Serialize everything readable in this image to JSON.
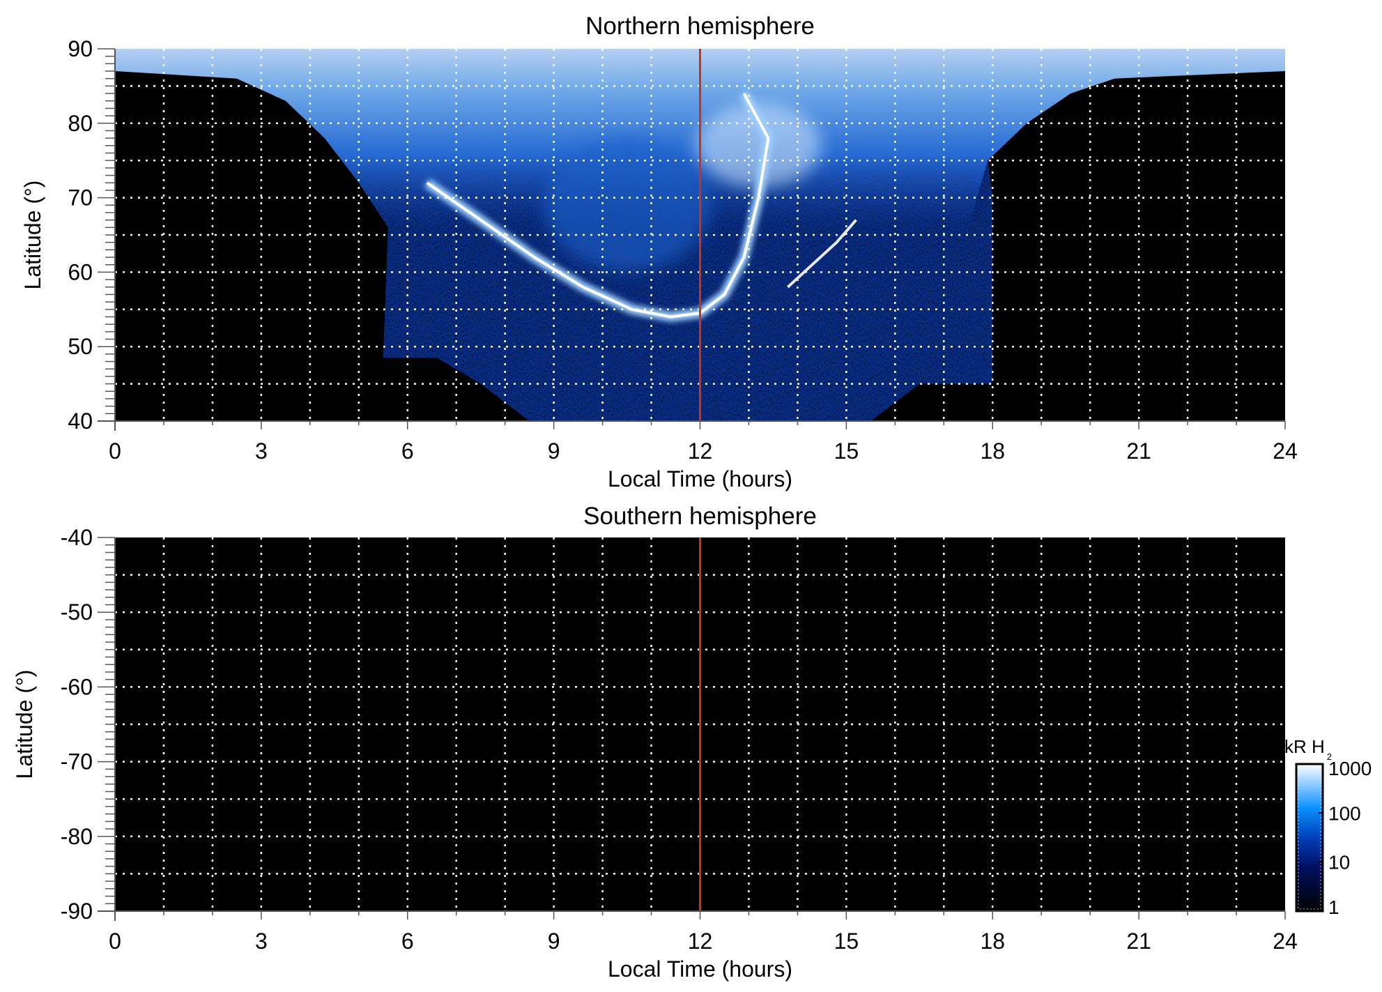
{
  "chart_data": [
    {
      "type": "heatmap",
      "title": "Northern hemisphere",
      "xlabel": "Local Time (hours)",
      "ylabel": "Latitude (°)",
      "xlim": [
        0,
        24
      ],
      "ylim": [
        40,
        90
      ],
      "xticks": [
        "0",
        "3",
        "6",
        "9",
        "12",
        "15",
        "18",
        "21",
        "24"
      ],
      "yticks": [
        "40",
        "50",
        "60",
        "70",
        "80",
        "90"
      ],
      "xtick_values": [
        0,
        3,
        6,
        9,
        12,
        15,
        18,
        21,
        24
      ],
      "ytick_values": [
        40,
        50,
        60,
        70,
        80,
        90
      ],
      "grid": true,
      "grid_x_step": 1,
      "grid_y_step": 5,
      "marker_line_local_time": 12,
      "marker_line_color": "#d03010",
      "notes": "auroral emission present between ~5.5 and ~18 h LT; bright main oval arc near 54-60° lat around 11-12 h LT"
    },
    {
      "type": "heatmap",
      "title": "Southern hemisphere",
      "xlabel": "Local Time (hours)",
      "ylabel": "Latitude (°)",
      "xlim": [
        0,
        24
      ],
      "ylim": [
        -90,
        -40
      ],
      "xticks": [
        "0",
        "3",
        "6",
        "9",
        "12",
        "15",
        "18",
        "21",
        "24"
      ],
      "yticks": [
        "-40",
        "-50",
        "-60",
        "-70",
        "-80",
        "-90"
      ],
      "xtick_values": [
        0,
        3,
        6,
        9,
        12,
        15,
        18,
        21,
        24
      ],
      "ytick_values": [
        -40,
        -50,
        -60,
        -70,
        -80,
        -90
      ],
      "grid": true,
      "grid_x_step": 1,
      "grid_y_step": 5,
      "marker_line_local_time": 12,
      "marker_line_color": "#d03010",
      "notes": "no emission (all black)"
    }
  ],
  "colorbar": {
    "label_main": "kR H",
    "label_sub": "2",
    "scale": "log",
    "range": [
      1,
      1000
    ],
    "ticks": [
      "1000",
      "100",
      "10",
      "1"
    ],
    "tick_values": [
      1000,
      100,
      10,
      1
    ],
    "colors": [
      "#000000",
      "#001060",
      "#0050d0",
      "#0a90ff",
      "#ffffff"
    ]
  }
}
